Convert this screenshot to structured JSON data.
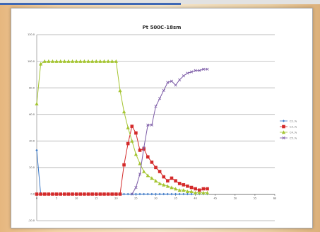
{
  "chart_data": {
    "type": "line",
    "title": "Pt 500C-18sm",
    "xlabel": "",
    "ylabel": "",
    "xlim": [
      0,
      60
    ],
    "ylim": [
      -20,
      120
    ],
    "x_ticks": [
      "0",
      "5",
      "10",
      "15",
      "20",
      "25",
      "30",
      "35",
      "40",
      "45",
      "50",
      "55",
      "60"
    ],
    "y_ticks": [
      "-20.0",
      "0.0",
      "20.0",
      "40.0",
      "60.0",
      "80.0",
      "100.0",
      "120.0"
    ],
    "grid": true,
    "legend_position": "right",
    "series": [
      {
        "name": "C2..%",
        "color": "#3a78c8",
        "marker": "diamond",
        "x": [
          0,
          1,
          2,
          3,
          4,
          5,
          6,
          7,
          8,
          9,
          10,
          11,
          12,
          13,
          14,
          15,
          16,
          17,
          18,
          19,
          20,
          21,
          22,
          23,
          24,
          25,
          26,
          27,
          28,
          29,
          30,
          31,
          32,
          33,
          34,
          35,
          36,
          37,
          38,
          39,
          40,
          41,
          42,
          43
        ],
        "values": [
          33,
          0,
          0,
          0,
          0,
          0,
          0,
          0,
          0,
          0,
          0,
          0,
          0,
          0,
          0,
          0,
          0,
          0,
          0,
          0,
          0,
          0,
          0,
          0,
          0,
          0,
          0,
          0,
          0,
          0,
          0,
          0,
          0,
          0,
          0,
          0,
          0,
          0,
          0,
          0,
          0,
          0,
          0,
          0
        ]
      },
      {
        "name": "C3..%",
        "color": "#d42a2a",
        "marker": "square",
        "x": [
          0,
          1,
          2,
          3,
          4,
          5,
          6,
          7,
          8,
          9,
          10,
          11,
          12,
          13,
          14,
          15,
          16,
          17,
          18,
          19,
          20,
          21,
          22,
          23,
          24,
          25,
          26,
          27,
          28,
          29,
          30,
          31,
          32,
          33,
          34,
          35,
          36,
          37,
          38,
          39,
          40,
          41,
          42,
          43
        ],
        "values": [
          0,
          0,
          0,
          0,
          0,
          0,
          0,
          0,
          0,
          0,
          0,
          0,
          0,
          0,
          0,
          0,
          0,
          0,
          0,
          0,
          0,
          0,
          22,
          38,
          51,
          46,
          33,
          34,
          28,
          24,
          20,
          17,
          13,
          10,
          12,
          10,
          8,
          7,
          6,
          5,
          4,
          3,
          4,
          4
        ]
      },
      {
        "name": "C4..%",
        "color": "#a5c532",
        "marker": "triangle",
        "x": [
          0,
          1,
          2,
          3,
          4,
          5,
          6,
          7,
          8,
          9,
          10,
          11,
          12,
          13,
          14,
          15,
          16,
          17,
          18,
          19,
          20,
          21,
          22,
          23,
          24,
          25,
          26,
          27,
          28,
          29,
          30,
          31,
          32,
          33,
          34,
          35,
          36,
          37,
          38,
          39,
          40,
          41,
          42,
          43
        ],
        "values": [
          68,
          98,
          100,
          100,
          100,
          100,
          100,
          100,
          100,
          100,
          100,
          100,
          100,
          100,
          100,
          100,
          100,
          100,
          100,
          100,
          100,
          78,
          62,
          50,
          40,
          30,
          23,
          17,
          14,
          12,
          10,
          8,
          7,
          6,
          5,
          4,
          3,
          3,
          2,
          2,
          1,
          1,
          1,
          1
        ]
      },
      {
        "name": "C5..%",
        "color": "#7b5aa6",
        "marker": "x",
        "x": [
          24,
          25,
          26,
          27,
          28,
          29,
          30,
          31,
          32,
          33,
          34,
          35,
          36,
          37,
          38,
          39,
          40,
          41,
          42,
          43
        ],
        "values": [
          0,
          5,
          15,
          35,
          52,
          52,
          66,
          72,
          78,
          84,
          85,
          82,
          86,
          89,
          91,
          92,
          93,
          93,
          94,
          94
        ]
      }
    ]
  },
  "colors": {
    "accent_line": "#3f68b5"
  }
}
